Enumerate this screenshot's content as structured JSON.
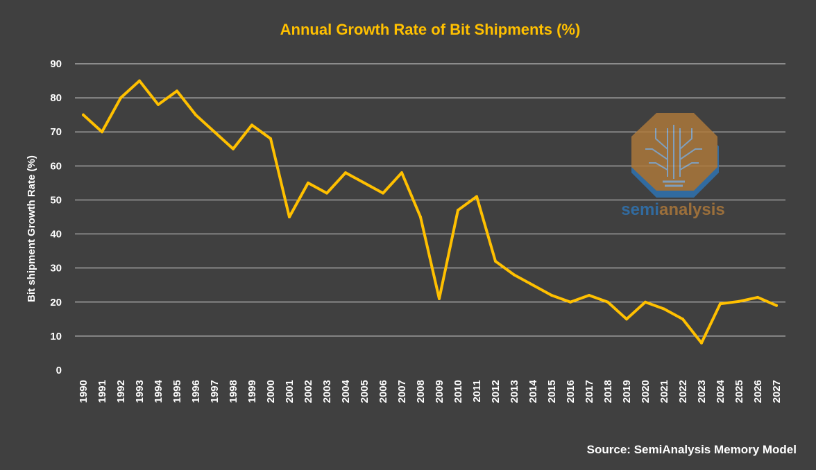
{
  "chart_data": {
    "type": "line",
    "title": "Annual Growth Rate of Bit Shipments (%)",
    "xlabel": "",
    "ylabel": "Bit shipment Growth Rate (%)",
    "ylim": [
      0,
      90
    ],
    "yticks": [
      0,
      10,
      20,
      30,
      40,
      50,
      60,
      70,
      80,
      90
    ],
    "grid": true,
    "categories": [
      "1990",
      "1991",
      "1992",
      "1993",
      "1994",
      "1995",
      "1996",
      "1997",
      "1998",
      "1999",
      "2000",
      "2001",
      "2002",
      "2003",
      "2004",
      "2005",
      "2006",
      "2007",
      "2008",
      "2009",
      "2010",
      "2011",
      "2012",
      "2013",
      "2014",
      "2015",
      "2016",
      "2017",
      "2018",
      "2019",
      "2020",
      "2021",
      "2022",
      "2023",
      "2024",
      "2025",
      "2026",
      "2027"
    ],
    "series": [
      {
        "values": [
          75,
          70,
          80,
          85,
          78,
          82,
          75,
          70,
          65,
          72,
          68,
          45,
          55,
          52,
          58,
          55,
          52,
          58,
          45,
          21,
          47,
          51,
          32,
          28,
          25,
          22,
          20,
          22,
          20,
          15,
          20,
          18,
          15,
          8,
          19.5,
          20.2,
          21.4,
          19
        ]
      }
    ],
    "source": "Source: SemiAnalysis Memory Model"
  },
  "logo": {
    "text_part1": "semi",
    "text_part2": "analysis"
  },
  "colors": {
    "background": "#404040",
    "line": "#ffc000",
    "title": "#ffc000",
    "grid": "#d9d9d9",
    "text": "#ffffff",
    "logo_orange": "#b07a3a",
    "logo_blue": "#2e75b6"
  }
}
